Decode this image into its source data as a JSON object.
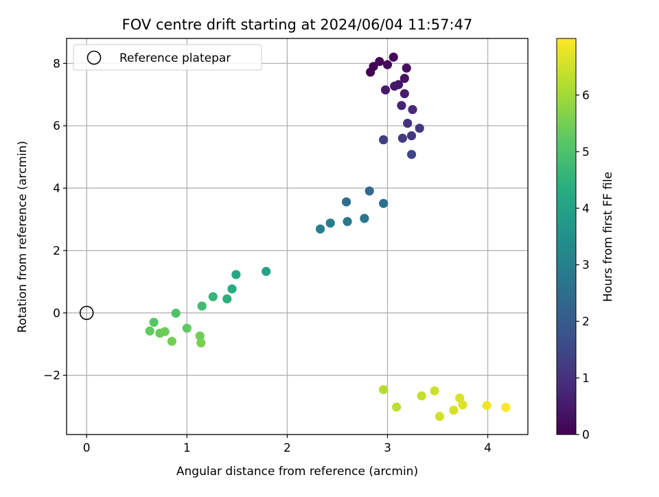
{
  "chart_data": {
    "type": "scatter",
    "title": "FOV centre drift starting at 2024/06/04 11:57:47",
    "xlabel": "Angular distance from reference (arcmin)",
    "ylabel": "Rotation from reference (arcmin)",
    "xlim": [
      -0.2,
      4.4
    ],
    "ylim": [
      -3.9,
      8.8
    ],
    "xticks": [
      0,
      1,
      2,
      3,
      4
    ],
    "yticks": [
      -2,
      0,
      2,
      4,
      6,
      8
    ],
    "xtick_labels": [
      "0",
      "1",
      "2",
      "3",
      "4"
    ],
    "ytick_labels": [
      "−2",
      "0",
      "2",
      "4",
      "6",
      "8"
    ],
    "grid": true,
    "legend": {
      "placement": "top-left",
      "label": "Reference platepar"
    },
    "reference_point": {
      "x": 0,
      "y": 0,
      "marker": "open-circle",
      "color": "#000000"
    },
    "colorbar": {
      "label": "Hours from first FF file",
      "range": [
        0,
        7.0
      ],
      "ticks": [
        0,
        1,
        2,
        3,
        4,
        5,
        6
      ],
      "tick_labels": [
        "0",
        "1",
        "2",
        "3",
        "4",
        "5",
        "6"
      ],
      "colormap": "viridis"
    },
    "points": [
      {
        "x": 2.83,
        "y": 7.72,
        "hours": 0.0
      },
      {
        "x": 2.86,
        "y": 7.9,
        "hours": 0.05
      },
      {
        "x": 2.92,
        "y": 8.06,
        "hours": 0.1
      },
      {
        "x": 3.06,
        "y": 8.2,
        "hours": 0.15
      },
      {
        "x": 3.0,
        "y": 7.96,
        "hours": 0.2
      },
      {
        "x": 3.19,
        "y": 7.85,
        "hours": 0.3
      },
      {
        "x": 3.17,
        "y": 7.52,
        "hours": 0.35
      },
      {
        "x": 3.11,
        "y": 7.32,
        "hours": 0.4
      },
      {
        "x": 3.07,
        "y": 7.27,
        "hours": 0.45
      },
      {
        "x": 2.98,
        "y": 7.15,
        "hours": 0.5
      },
      {
        "x": 3.17,
        "y": 7.03,
        "hours": 0.55
      },
      {
        "x": 3.14,
        "y": 6.65,
        "hours": 0.7
      },
      {
        "x": 3.25,
        "y": 6.52,
        "hours": 0.8
      },
      {
        "x": 3.2,
        "y": 6.08,
        "hours": 1.0
      },
      {
        "x": 3.32,
        "y": 5.92,
        "hours": 1.1
      },
      {
        "x": 3.24,
        "y": 5.68,
        "hours": 1.15
      },
      {
        "x": 3.15,
        "y": 5.6,
        "hours": 1.2
      },
      {
        "x": 2.96,
        "y": 5.55,
        "hours": 1.3
      },
      {
        "x": 3.24,
        "y": 5.08,
        "hours": 1.45
      },
      {
        "x": 2.82,
        "y": 3.91,
        "hours": 2.4
      },
      {
        "x": 2.59,
        "y": 3.56,
        "hours": 2.5
      },
      {
        "x": 2.96,
        "y": 3.51,
        "hours": 2.55
      },
      {
        "x": 2.77,
        "y": 3.03,
        "hours": 2.7
      },
      {
        "x": 2.6,
        "y": 2.93,
        "hours": 2.8
      },
      {
        "x": 2.43,
        "y": 2.88,
        "hours": 2.9
      },
      {
        "x": 2.33,
        "y": 2.69,
        "hours": 3.0
      },
      {
        "x": 1.79,
        "y": 1.33,
        "hours": 4.0
      },
      {
        "x": 1.49,
        "y": 1.23,
        "hours": 4.15
      },
      {
        "x": 1.45,
        "y": 0.77,
        "hours": 4.3
      },
      {
        "x": 1.4,
        "y": 0.45,
        "hours": 4.45
      },
      {
        "x": 1.26,
        "y": 0.52,
        "hours": 4.6
      },
      {
        "x": 1.15,
        "y": 0.22,
        "hours": 4.8
      },
      {
        "x": 0.89,
        "y": -0.01,
        "hours": 5.0
      },
      {
        "x": 0.67,
        "y": -0.3,
        "hours": 5.15
      },
      {
        "x": 1.0,
        "y": -0.49,
        "hours": 5.25
      },
      {
        "x": 0.63,
        "y": -0.58,
        "hours": 5.3
      },
      {
        "x": 0.73,
        "y": -0.65,
        "hours": 5.35
      },
      {
        "x": 0.78,
        "y": -0.6,
        "hours": 5.4
      },
      {
        "x": 1.13,
        "y": -0.74,
        "hours": 5.45
      },
      {
        "x": 0.85,
        "y": -0.91,
        "hours": 5.5
      },
      {
        "x": 1.14,
        "y": -0.96,
        "hours": 5.55
      },
      {
        "x": 2.96,
        "y": -2.46,
        "hours": 6.2
      },
      {
        "x": 3.09,
        "y": -3.02,
        "hours": 6.3
      },
      {
        "x": 3.34,
        "y": -2.66,
        "hours": 6.4
      },
      {
        "x": 3.47,
        "y": -2.5,
        "hours": 6.45
      },
      {
        "x": 3.52,
        "y": -3.32,
        "hours": 6.5
      },
      {
        "x": 3.66,
        "y": -3.12,
        "hours": 6.55
      },
      {
        "x": 3.72,
        "y": -2.73,
        "hours": 6.6
      },
      {
        "x": 3.75,
        "y": -2.95,
        "hours": 6.65
      },
      {
        "x": 3.99,
        "y": -2.97,
        "hours": 6.85
      },
      {
        "x": 4.18,
        "y": -3.03,
        "hours": 7.0
      }
    ]
  }
}
